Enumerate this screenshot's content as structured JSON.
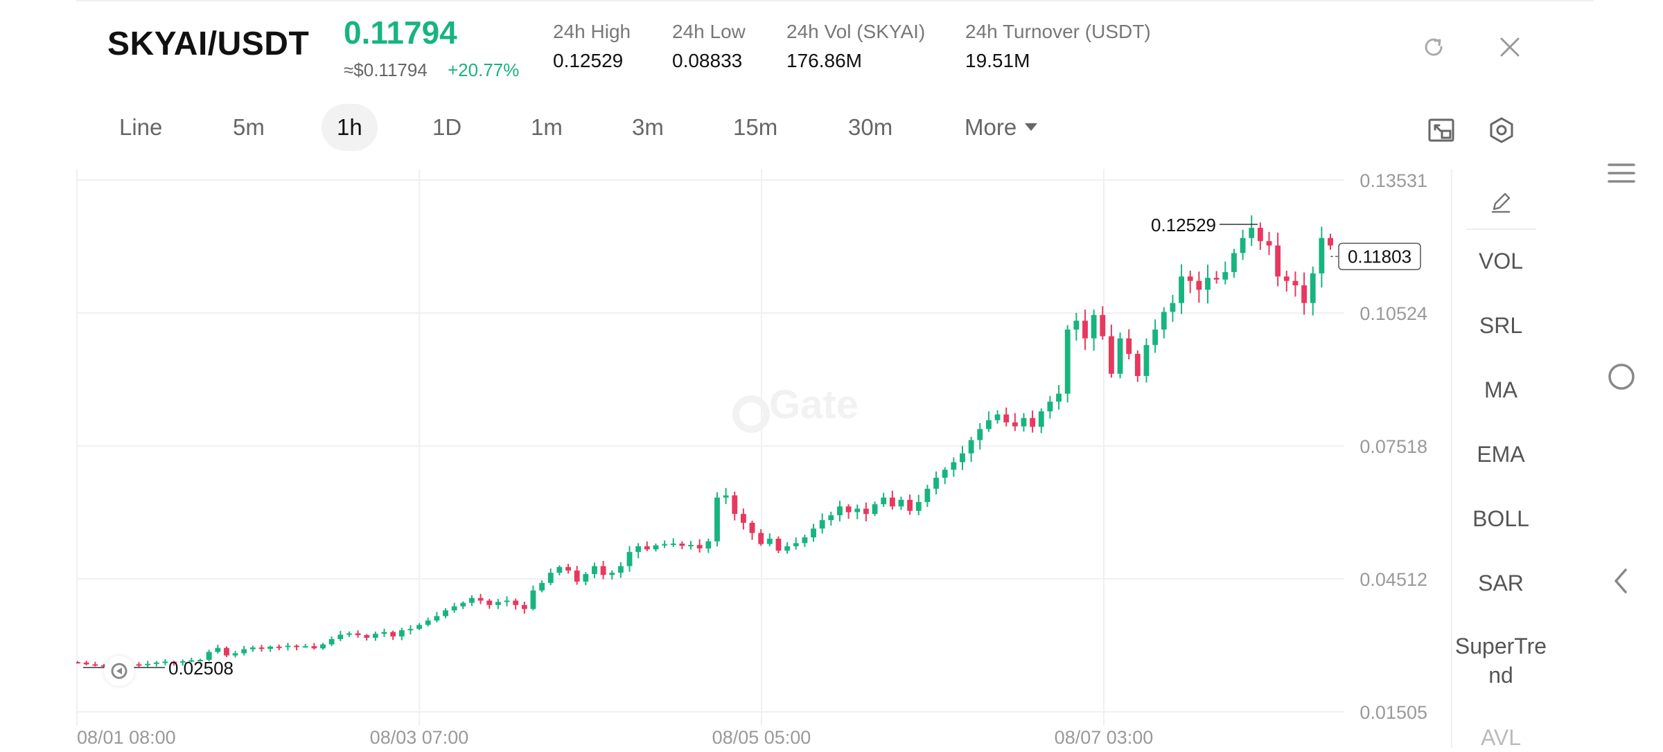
{
  "header": {
    "pair": "SKYAI/USDT",
    "last_price": "0.11794",
    "fiat_price": "≈$0.11794",
    "change_pct": "+20.77%",
    "stats": [
      {
        "label": "24h   High",
        "value": "0.12529"
      },
      {
        "label": "24h   Low",
        "value": "0.08833"
      },
      {
        "label": "24h   Vol (SKYAI)",
        "value": "176.86M"
      },
      {
        "label": "24h   Turnover (USDT)",
        "value": "19.51M"
      }
    ]
  },
  "tabs": [
    {
      "label": "Line",
      "active": false
    },
    {
      "label": "5m",
      "active": false
    },
    {
      "label": "1h",
      "active": true
    },
    {
      "label": "1D",
      "active": false
    },
    {
      "label": "1m",
      "active": false
    },
    {
      "label": "3m",
      "active": false
    },
    {
      "label": "15m",
      "active": false
    },
    {
      "label": "30m",
      "active": false
    },
    {
      "label": "More",
      "active": false
    }
  ],
  "indicators": [
    "VOL",
    "SRL",
    "MA",
    "EMA",
    "BOLL",
    "SAR",
    "SuperTrend",
    "AVL"
  ],
  "colors": {
    "up": "#18b47e",
    "down": "#e8385e",
    "grid": "#f0f0f0",
    "axis_text": "#999999"
  },
  "icons": {
    "refresh": "refresh-icon",
    "close": "close-icon",
    "fullscreen": "fullscreen-icon",
    "settings": "settings-icon",
    "edit": "pencil-icon",
    "menu": "hamburger-icon",
    "home": "circle-icon",
    "back": "chevron-left-icon"
  },
  "chart_data": {
    "type": "candlestick",
    "watermark": "Gate",
    "y_ticks": [
      "0.13531",
      "0.10524",
      "0.07518",
      "0.04512",
      "0.01505"
    ],
    "ylim": [
      0.01505,
      0.13531
    ],
    "x_ticks": [
      "08/01 08:00",
      "08/03 07:00",
      "08/05 05:00",
      "08/07 03:00"
    ],
    "high_label": "0.12529",
    "low_label": "0.02508",
    "current_price_label": "0.11803",
    "series": [
      {
        "name": "close",
        "values": [
          0.0262,
          0.0258,
          0.0256,
          0.0255,
          0.0254,
          0.0256,
          0.0258,
          0.0257,
          0.0259,
          0.0262,
          0.0264,
          0.0262,
          0.0265,
          0.0267,
          0.0268,
          0.0286,
          0.0295,
          0.0278,
          0.0283,
          0.0292,
          0.0296,
          0.0293,
          0.0298,
          0.0297,
          0.03,
          0.0298,
          0.0299,
          0.0294,
          0.0303,
          0.0315,
          0.0325,
          0.0328,
          0.0324,
          0.0318,
          0.0327,
          0.0331,
          0.0321,
          0.0335,
          0.0338,
          0.0347,
          0.0357,
          0.0367,
          0.038,
          0.0389,
          0.0397,
          0.0408,
          0.0402,
          0.0392,
          0.0399,
          0.0402,
          0.0392,
          0.0383,
          0.0425,
          0.0442,
          0.0465,
          0.0478,
          0.047,
          0.0445,
          0.0462,
          0.048,
          0.046,
          0.0465,
          0.048,
          0.0512,
          0.0525,
          0.0518,
          0.0527,
          0.053,
          0.0531,
          0.0526,
          0.0528,
          0.052,
          0.0536,
          0.0635,
          0.064,
          0.0598,
          0.0578,
          0.0555,
          0.053,
          0.0542,
          0.0515,
          0.0525,
          0.0532,
          0.0545,
          0.0565,
          0.0584,
          0.0595,
          0.0615,
          0.0602,
          0.061,
          0.0598,
          0.062,
          0.0635,
          0.0615,
          0.063,
          0.0605,
          0.0625,
          0.0655,
          0.068,
          0.0698,
          0.0715,
          0.0735,
          0.0765,
          0.079,
          0.081,
          0.0823,
          0.0805,
          0.0796,
          0.0815,
          0.0795,
          0.083,
          0.0852,
          0.087,
          0.1015,
          0.1035,
          0.0995,
          0.1048,
          0.1,
          0.0915,
          0.0995,
          0.096,
          0.091,
          0.098,
          0.1015,
          0.1055,
          0.1075,
          0.1135,
          0.1125,
          0.1105,
          0.1132,
          0.1128,
          0.1145,
          0.1188,
          0.1222,
          0.1245,
          0.1215,
          0.1205,
          0.1135,
          0.1125,
          0.1115,
          0.1075,
          0.1142,
          0.1222,
          0.1205
        ]
      }
    ]
  },
  "side_panel": {
    "items": [
      "VOL",
      "SRL",
      "MA",
      "EMA",
      "BOLL",
      "SAR",
      "SuperTrend",
      "AVL"
    ]
  }
}
